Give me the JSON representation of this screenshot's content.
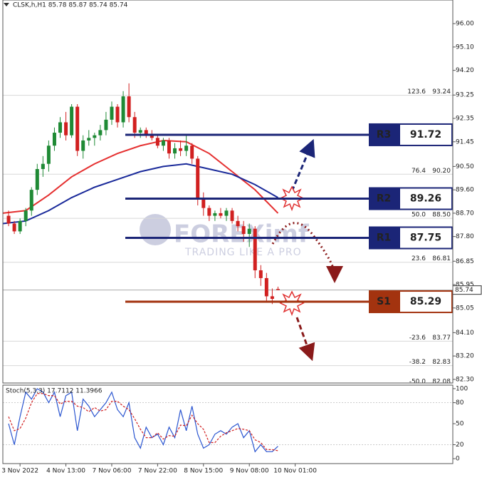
{
  "chart_data": [
    {
      "type": "candlestick",
      "title": "CLSK,h,H1  85.78 85.87 85.74 85.74",
      "x": [
        -2,
        -1,
        0,
        1,
        2,
        3,
        4,
        5,
        6,
        7,
        8,
        9,
        10,
        11,
        12,
        13,
        14,
        15,
        16,
        17,
        18,
        19,
        20,
        21,
        22,
        23,
        24,
        25,
        26,
        27,
        28,
        29,
        30,
        31,
        32,
        33,
        34,
        35,
        36,
        37,
        38,
        39,
        40,
        41,
        42,
        43,
        44,
        45
      ],
      "open": [
        88.6,
        88.3,
        88.0,
        88.4,
        88.8,
        89.6,
        90.4,
        90.6,
        91.3,
        91.8,
        92.2,
        91.7,
        92.8,
        91.1,
        91.5,
        91.6,
        91.7,
        91.9,
        92.3,
        92.8,
        92.2,
        93.2,
        92.4,
        91.8,
        91.9,
        91.7,
        91.6,
        91.3,
        91.5,
        91.0,
        91.2,
        91.1,
        91.3,
        90.8,
        89.3,
        88.9,
        88.6,
        88.7,
        88.6,
        88.8,
        88.4,
        88.2,
        87.9,
        88.1,
        86.5,
        86.2,
        85.5,
        85.78
      ],
      "high": [
        88.8,
        88.4,
        88.5,
        88.9,
        89.7,
        90.6,
        90.9,
        91.5,
        92.0,
        92.4,
        92.6,
        92.9,
        92.9,
        91.7,
        91.9,
        91.8,
        92.1,
        92.6,
        93.0,
        92.9,
        93.4,
        93.7,
        92.6,
        92.0,
        92.0,
        91.9,
        91.7,
        91.6,
        91.6,
        91.4,
        91.5,
        91.7,
        91.4,
        90.9,
        89.5,
        89.0,
        88.8,
        88.9,
        88.9,
        88.9,
        88.6,
        88.4,
        88.3,
        88.2,
        86.7,
        86.4,
        85.8,
        85.87
      ],
      "low": [
        88.2,
        87.9,
        87.9,
        88.2,
        88.6,
        89.4,
        90.1,
        90.3,
        91.1,
        91.6,
        91.5,
        91.6,
        90.9,
        90.8,
        91.3,
        91.3,
        91.5,
        91.7,
        92.1,
        92.0,
        92.0,
        92.2,
        91.6,
        91.6,
        91.6,
        91.5,
        91.2,
        91.1,
        90.8,
        90.8,
        90.9,
        90.9,
        90.6,
        89.0,
        88.6,
        88.4,
        88.4,
        88.5,
        88.4,
        88.3,
        88.0,
        87.6,
        87.4,
        86.2,
        85.9,
        85.3,
        85.2,
        85.74
      ],
      "close": [
        88.3,
        88.0,
        88.4,
        88.8,
        89.6,
        90.4,
        90.6,
        91.3,
        91.8,
        92.2,
        91.7,
        92.8,
        91.1,
        91.5,
        91.6,
        91.7,
        91.9,
        92.3,
        92.8,
        92.2,
        93.2,
        92.4,
        91.8,
        91.9,
        91.7,
        91.6,
        91.3,
        91.5,
        91.0,
        91.2,
        91.1,
        91.3,
        90.8,
        89.3,
        88.9,
        88.6,
        88.7,
        88.6,
        88.8,
        88.4,
        88.2,
        87.9,
        88.1,
        86.5,
        86.2,
        85.5,
        85.4,
        85.74
      ],
      "up_color": "#1f8a35",
      "down_color": "#d12020",
      "lines": [
        {
          "color": "#e53030",
          "x": [
            -3,
            1,
            5,
            9,
            13,
            17,
            21,
            25,
            29,
            33,
            37,
            41,
            45
          ],
          "values": [
            88.7,
            88.8,
            89.4,
            90.1,
            90.6,
            91.0,
            91.3,
            91.5,
            91.45,
            91.0,
            90.3,
            89.6,
            88.7
          ]
        },
        {
          "color": "#1a2a9a",
          "x": [
            -3,
            1,
            5,
            9,
            13,
            17,
            21,
            25,
            29,
            33,
            37,
            41,
            45
          ],
          "values": [
            88.3,
            88.4,
            88.8,
            89.3,
            89.7,
            90.0,
            90.3,
            90.5,
            90.6,
            90.4,
            90.2,
            89.8,
            89.3
          ]
        }
      ],
      "levels": [
        {
          "label": "R3",
          "value": 91.72,
          "color": "#1b2577"
        },
        {
          "label": "R2",
          "value": 89.26,
          "color": "#1b2577"
        },
        {
          "label": "R1",
          "value": 87.75,
          "color": "#1b2577"
        },
        {
          "label": "S1",
          "value": 85.29,
          "color": "#a3330f"
        }
      ],
      "fib": [
        {
          "ratio": "123.6",
          "value": 93.24,
          "label": "93.24"
        },
        {
          "ratio": "76.4",
          "value": 90.2,
          "label": "90.20"
        },
        {
          "ratio": "50.0",
          "value": 88.5,
          "label": "88.50"
        },
        {
          "ratio": "23.6",
          "value": 86.81,
          "label": "86.81"
        },
        {
          "ratio": "-23.6",
          "value": 83.77,
          "label": "83.77"
        },
        {
          "ratio": "-38.2",
          "value": 82.83,
          "label": "82.83"
        },
        {
          "ratio": "-50.0",
          "value": 82.08,
          "label": "82.08"
        }
      ],
      "last_price": 85.74,
      "watermark": [
        "FOREXimf",
        "TRADING LIKE A PRO"
      ],
      "xlim": [
        -3,
        75.5
      ],
      "ylim": [
        82.16,
        96.91
      ],
      "yticks": [
        {
          "value": 96,
          "label": "96.00"
        },
        {
          "value": 95.1,
          "label": "95.10"
        },
        {
          "value": 94.2,
          "label": "94.20"
        },
        {
          "value": 93.25,
          "label": "93.25"
        },
        {
          "value": 92.35,
          "label": "92.35"
        },
        {
          "value": 91.45,
          "label": "91.45"
        },
        {
          "value": 90.5,
          "label": "90.50"
        },
        {
          "value": 89.6,
          "label": "89.60"
        },
        {
          "value": 88.7,
          "label": "88.70"
        },
        {
          "value": 87.8,
          "label": "87.80"
        },
        {
          "value": 86.85,
          "label": "86.85"
        },
        {
          "value": 85.95,
          "label": "85.95"
        },
        {
          "value": 85.05,
          "label": "85.05"
        },
        {
          "value": 84.1,
          "label": "84.10"
        },
        {
          "value": 83.2,
          "label": "83.20"
        },
        {
          "value": 82.3,
          "label": "82.30"
        }
      ]
    },
    {
      "type": "line",
      "title": "Stoch(5,3,3) 17.7112 11.3966",
      "x": [
        -2,
        -1,
        0,
        1,
        2,
        3,
        4,
        5,
        6,
        7,
        8,
        9,
        10,
        11,
        12,
        13,
        14,
        15,
        16,
        17,
        18,
        19,
        20,
        21,
        22,
        23,
        24,
        25,
        26,
        27,
        28,
        29,
        30,
        31,
        32,
        33,
        34,
        35,
        36,
        37,
        38,
        39,
        40,
        41,
        42,
        43,
        44,
        45
      ],
      "series": [
        {
          "color": "#2a55d0",
          "values": [
            50,
            20,
            60,
            95,
            85,
            100,
            95,
            80,
            95,
            60,
            90,
            95,
            40,
            85,
            75,
            60,
            70,
            80,
            95,
            70,
            60,
            80,
            30,
            15,
            45,
            30,
            35,
            20,
            45,
            30,
            70,
            40,
            75,
            35,
            15,
            20,
            35,
            40,
            35,
            45,
            50,
            30,
            40,
            10,
            20,
            10,
            10,
            17.7112
          ]
        },
        {
          "color": "#d12020",
          "dashed": true,
          "values": [
            60,
            40,
            43,
            58,
            80,
            93,
            93,
            90,
            90,
            78,
            82,
            82,
            75,
            73,
            67,
            73,
            68,
            70,
            82,
            82,
            75,
            70,
            57,
            42,
            30,
            30,
            37,
            28,
            33,
            32,
            48,
            47,
            62,
            50,
            42,
            23,
            23,
            32,
            37,
            40,
            43,
            42,
            40,
            27,
            23,
            13,
            13,
            11.3966
          ]
        }
      ],
      "xlim": [
        -3,
        75.5
      ],
      "xticks": [
        {
          "value": 0,
          "label": "3 Nov 2022"
        },
        {
          "value": 8,
          "label": "4 Nov 13:00"
        },
        {
          "value": 16,
          "label": "7 Nov 06:00"
        },
        {
          "value": 24,
          "label": "7 Nov 22:00"
        },
        {
          "value": 32,
          "label": "8 Nov 15:00"
        },
        {
          "value": 40,
          "label": "9 Nov 08:00"
        },
        {
          "value": 48,
          "label": "10 Nov 01:00"
        }
      ],
      "ylim": [
        -7,
        105
      ],
      "yticks": [
        100,
        80,
        50,
        20,
        0
      ]
    }
  ]
}
